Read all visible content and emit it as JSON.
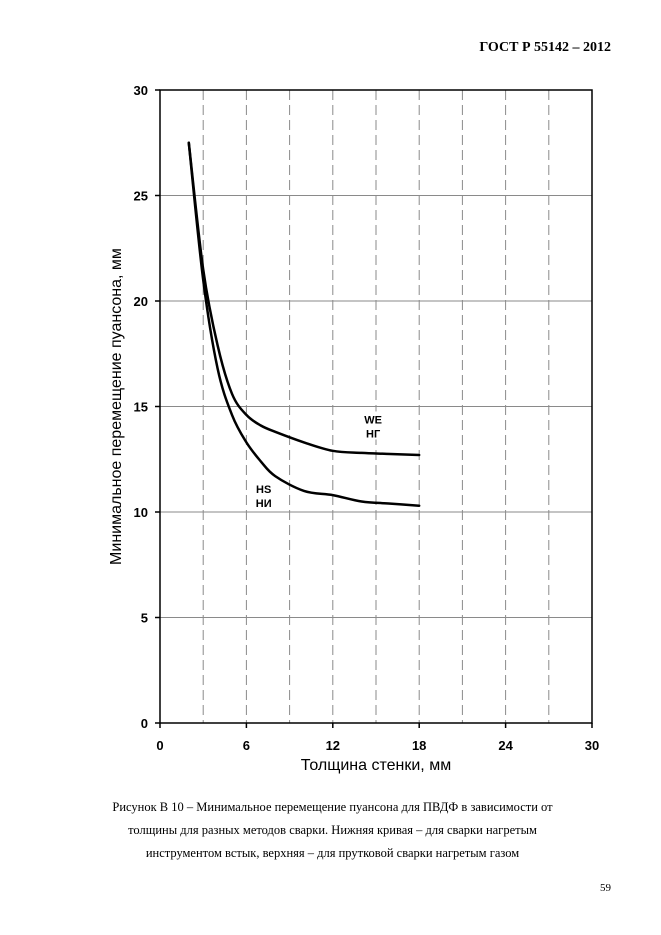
{
  "header": {
    "standard": "ГОСТ Р  55142 – 2012"
  },
  "chart_data": {
    "type": "line",
    "xlabel": "Толщина стенки, мм",
    "ylabel": "Минимальное перемещение пуансона, мм",
    "xlim": [
      0,
      30
    ],
    "ylim": [
      0,
      30
    ],
    "x_ticks": [
      0,
      6,
      12,
      18,
      24,
      30
    ],
    "y_ticks": [
      0,
      5,
      10,
      15,
      20,
      25,
      30
    ],
    "grid": true,
    "series": [
      {
        "name": "WE НГ",
        "label_top": "WE",
        "label_bottom": "НГ",
        "label_at": [
          14.8,
          14.1
        ],
        "color": "#000000",
        "points": [
          [
            2,
            27.5
          ],
          [
            3,
            21.5
          ],
          [
            4,
            17.9
          ],
          [
            5,
            15.6
          ],
          [
            6,
            14.6
          ],
          [
            7,
            14.1
          ],
          [
            8,
            13.8
          ],
          [
            10,
            13.3
          ],
          [
            12,
            12.9
          ],
          [
            14,
            12.8
          ],
          [
            16,
            12.75
          ],
          [
            18,
            12.7
          ]
        ]
      },
      {
        "name": "HS НИ",
        "label_top": "HS",
        "label_bottom": "НИ",
        "label_at": [
          7.2,
          10.8
        ],
        "color": "#000000",
        "points": [
          [
            2,
            27.5
          ],
          [
            3,
            21.0
          ],
          [
            4,
            16.8
          ],
          [
            5,
            14.6
          ],
          [
            6,
            13.3
          ],
          [
            7,
            12.4
          ],
          [
            8,
            11.7
          ],
          [
            10,
            11.0
          ],
          [
            12,
            10.8
          ],
          [
            14,
            10.5
          ],
          [
            16,
            10.4
          ],
          [
            18,
            10.3
          ]
        ]
      }
    ]
  },
  "caption": {
    "line1": "Рисунок В 10 – Минимальное перемещение пуансона для ПВДФ в зависимости от",
    "line2": "толщины для разных методов сварки. Нижняя кривая – для сварки нагретым",
    "line3": "инструментом встык, верхняя – для прутковой сварки нагретым газом"
  },
  "page_number": "59"
}
